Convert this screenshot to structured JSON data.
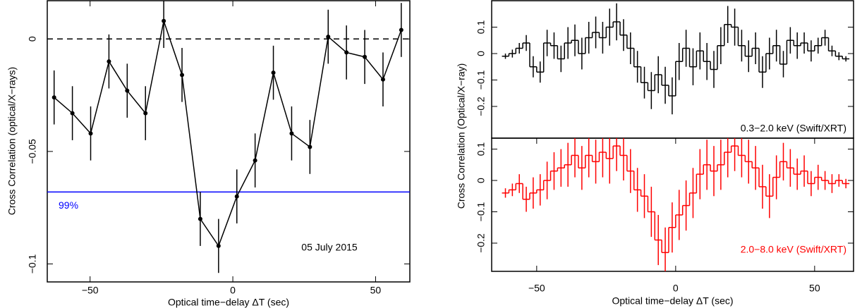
{
  "chart_data": [
    {
      "type": "line",
      "xlabel": "Optical time−delay ΔT (sec)",
      "ylabel": "Cross Correlation (optical/X−rays)",
      "annotation": "05 July 2015",
      "xlim": [
        -65,
        62
      ],
      "ylim": [
        -0.108,
        0.017
      ],
      "xticks": [
        {
          "value": -50,
          "label": "−50"
        },
        0,
        50
      ],
      "yticks": [
        {
          "value": -0.1,
          "label": "−0.1"
        },
        {
          "value": -0.05,
          "label": "−0.05"
        },
        0
      ],
      "hlines": [
        {
          "value": 0,
          "color": "#000000",
          "dashed": true
        },
        {
          "value": -0.068,
          "color": "#0000ff",
          "dashed": false,
          "label": "99%"
        }
      ],
      "series": [
        {
          "color": "#000000",
          "x": [
            -62.6,
            -56.2,
            -49.8,
            -43.4,
            -37,
            -30.6,
            -24.2,
            -17.8,
            -11.4,
            -5,
            1.4,
            7.8,
            14.2,
            20.6,
            27,
            33.4,
            39.8,
            46.2,
            52.6,
            59
          ],
          "values": [
            -0.026,
            -0.033,
            -0.042,
            -0.01,
            -0.023,
            -0.033,
            0.008,
            -0.016,
            -0.08,
            -0.092,
            -0.07,
            -0.054,
            -0.015,
            -0.042,
            -0.048,
            0.001,
            -0.006,
            -0.008,
            -0.018,
            0.004
          ],
          "errors": [
            0.012,
            0.012,
            0.012,
            0.012,
            0.012,
            0.012,
            0.012,
            0.012,
            0.012,
            0.012,
            0.012,
            0.012,
            0.012,
            0.012,
            0.012,
            0.012,
            0.012,
            0.012,
            0.012,
            0.012
          ]
        }
      ]
    },
    {
      "type": "step",
      "ylabel": "Cross Correlation (Optical/X−ray)",
      "label": "0.3−2.0 keV (Swift/XRT)",
      "xlim": [
        -66.2,
        64
      ],
      "ylim": [
        -0.32,
        0.2
      ],
      "yticks": [
        {
          "value": -0.2,
          "label": "−0.2"
        },
        {
          "value": -0.1,
          "label": "−0.1"
        },
        0,
        0.1
      ],
      "series": [
        {
          "color": "#000000",
          "bins": [
            -62.5,
            -60,
            -57.5,
            -55,
            -52.5,
            -50,
            -47.5,
            -45,
            -42.5,
            -40,
            -37.5,
            -35,
            -32.5,
            -30,
            -27.5,
            -25,
            -22.5,
            -20,
            -17.5,
            -15,
            -12.5,
            -10,
            -7.5,
            -5,
            -2.5,
            0,
            2.5,
            5,
            7.5,
            10,
            12.5,
            15,
            17.5,
            20,
            22.5,
            25,
            27.5,
            30,
            32.5,
            35,
            37.5,
            40,
            42.5,
            45,
            47.5,
            50,
            52.5,
            55,
            57.5,
            60,
            62.5
          ],
          "values": [
            -0.01,
            0.0,
            0.02,
            0.04,
            -0.05,
            -0.07,
            0.04,
            0.03,
            -0.02,
            0.04,
            0.05,
            0.0,
            0.06,
            0.08,
            0.06,
            0.1,
            0.12,
            0.07,
            0.02,
            -0.05,
            -0.11,
            -0.14,
            -0.08,
            -0.12,
            -0.16,
            -0.03,
            0.02,
            -0.05,
            0.01,
            -0.03,
            -0.06,
            0.03,
            0.11,
            0.1,
            0.03,
            -0.01,
            0.02,
            -0.07,
            0.0,
            0.03,
            -0.04,
            0.05,
            0.03,
            0.04,
            0.01,
            0.03,
            0.06,
            0.01,
            -0.01,
            -0.02
          ],
          "errors": [
            0.01,
            0.015,
            0.02,
            0.03,
            0.04,
            0.04,
            0.05,
            0.05,
            0.05,
            0.06,
            0.06,
            0.06,
            0.06,
            0.06,
            0.06,
            0.07,
            0.07,
            0.06,
            0.06,
            0.06,
            0.06,
            0.07,
            0.07,
            0.07,
            0.07,
            0.07,
            0.07,
            0.07,
            0.07,
            0.07,
            0.07,
            0.07,
            0.07,
            0.07,
            0.06,
            0.06,
            0.06,
            0.06,
            0.06,
            0.06,
            0.05,
            0.05,
            0.05,
            0.04,
            0.04,
            0.03,
            0.03,
            0.02,
            0.015,
            0.01
          ]
        }
      ]
    },
    {
      "type": "step",
      "xlabel": "Optical time−delay ΔT (sec)",
      "label": "2.0−8.0 keV (Swift/XRT)",
      "xlim": [
        -66.2,
        64
      ],
      "ylim": [
        -0.29,
        0.135
      ],
      "xticks": [
        {
          "value": -50,
          "label": "−50"
        },
        0,
        50
      ],
      "yticks": [
        {
          "value": -0.2,
          "label": "−0.2"
        },
        {
          "value": -0.1,
          "label": "−0.1"
        },
        0,
        0.1
      ],
      "series": [
        {
          "color": "#ff0000",
          "bins": [
            -62.5,
            -60,
            -57.5,
            -55,
            -52.5,
            -50,
            -47.5,
            -45,
            -42.5,
            -40,
            -37.5,
            -35,
            -32.5,
            -30,
            -27.5,
            -25,
            -22.5,
            -20,
            -17.5,
            -15,
            -12.5,
            -10,
            -7.5,
            -5,
            -2.5,
            0,
            2.5,
            5,
            7.5,
            10,
            12.5,
            15,
            17.5,
            20,
            22.5,
            25,
            27.5,
            30,
            32.5,
            35,
            37.5,
            40,
            42.5,
            45,
            47.5,
            50,
            52.5,
            55,
            57.5,
            60,
            62.5
          ],
          "values": [
            -0.04,
            -0.03,
            -0.01,
            -0.06,
            -0.04,
            -0.03,
            0.0,
            0.03,
            0.04,
            0.05,
            0.08,
            0.04,
            0.08,
            0.06,
            0.09,
            0.07,
            0.11,
            0.08,
            0.03,
            -0.03,
            -0.05,
            -0.1,
            -0.19,
            -0.23,
            -0.15,
            -0.11,
            -0.08,
            -0.04,
            0.02,
            0.05,
            0.03,
            0.05,
            0.09,
            0.11,
            0.08,
            0.06,
            0.04,
            -0.02,
            -0.05,
            0.01,
            0.06,
            0.04,
            0.02,
            0.03,
            -0.01,
            0.01,
            0.0,
            -0.01,
            0.0,
            -0.01
          ],
          "errors": [
            0.015,
            0.02,
            0.03,
            0.04,
            0.05,
            0.05,
            0.06,
            0.06,
            0.06,
            0.07,
            0.07,
            0.07,
            0.07,
            0.07,
            0.08,
            0.08,
            0.08,
            0.08,
            0.07,
            0.07,
            0.07,
            0.08,
            0.08,
            0.08,
            0.08,
            0.08,
            0.08,
            0.08,
            0.08,
            0.08,
            0.08,
            0.08,
            0.08,
            0.08,
            0.07,
            0.07,
            0.07,
            0.07,
            0.07,
            0.07,
            0.06,
            0.06,
            0.05,
            0.05,
            0.04,
            0.04,
            0.03,
            0.03,
            0.02,
            0.015
          ]
        }
      ]
    }
  ]
}
